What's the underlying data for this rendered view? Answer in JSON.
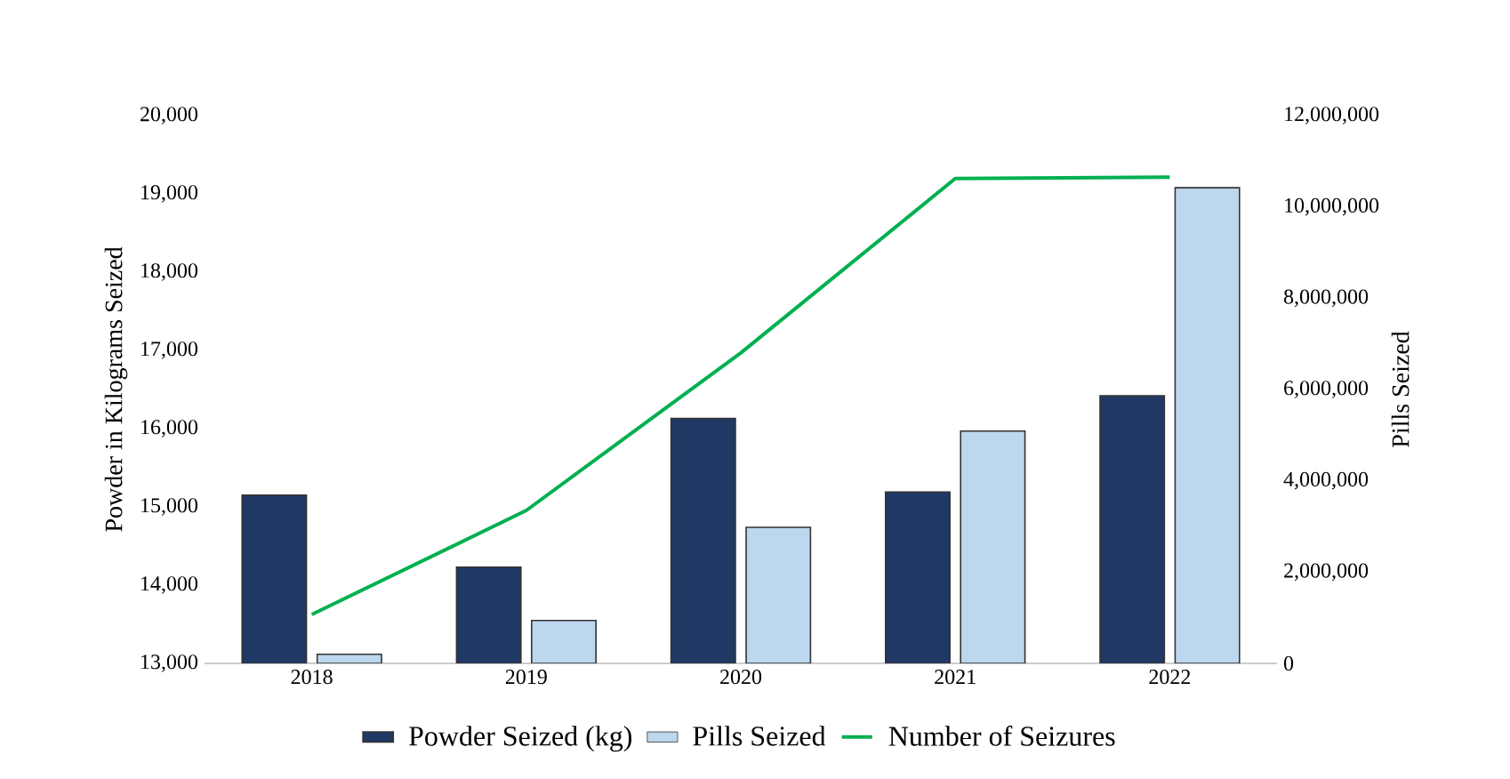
{
  "chart_data": {
    "type": "bar",
    "ylabel": "Powder in Kilograms Seized",
    "y2label": "Pills Seized",
    "categories": [
      "2018",
      "2019",
      "2020",
      "2021",
      "2022"
    ],
    "series": [
      {
        "name": "Powder Seized (kg)",
        "color": "#203864",
        "values": [
          15150,
          14230,
          16130,
          15190,
          16420
        ]
      },
      {
        "name": "Pills Seized",
        "color": "#bdd7ee",
        "axis": "y2",
        "values": [
          200000,
          940000,
          2980000,
          5090000,
          10420000
        ]
      },
      {
        "name": "Number of Seizures",
        "type": "line",
        "color": "#00b050",
        "axis": "y2",
        "values": [
          1070000,
          3350000,
          6800000,
          10620000,
          10650000
        ]
      }
    ],
    "ylim": [
      13000,
      20000
    ],
    "yticks": [
      {
        "value": 13000,
        "label": "13,000"
      },
      {
        "value": 14000,
        "label": "14,000"
      },
      {
        "value": 15000,
        "label": "15,000"
      },
      {
        "value": 16000,
        "label": "16,000"
      },
      {
        "value": 17000,
        "label": "17,000"
      },
      {
        "value": 18000,
        "label": "18,000"
      },
      {
        "value": 19000,
        "label": "19,000"
      },
      {
        "value": 20000,
        "label": "20,000"
      }
    ],
    "y2lim": [
      0,
      12000000
    ],
    "y2ticks": [
      0,
      {
        "value": 2000000,
        "label": "2,000,000"
      },
      {
        "value": 4000000,
        "label": "4,000,000"
      },
      {
        "value": 6000000,
        "label": "6,000,000"
      },
      {
        "value": 8000000,
        "label": "8,000,000"
      },
      {
        "value": 10000000,
        "label": "10,000,000"
      },
      {
        "value": 12000000,
        "label": "12,000,000"
      }
    ],
    "legend": "bottom",
    "grid": false
  }
}
